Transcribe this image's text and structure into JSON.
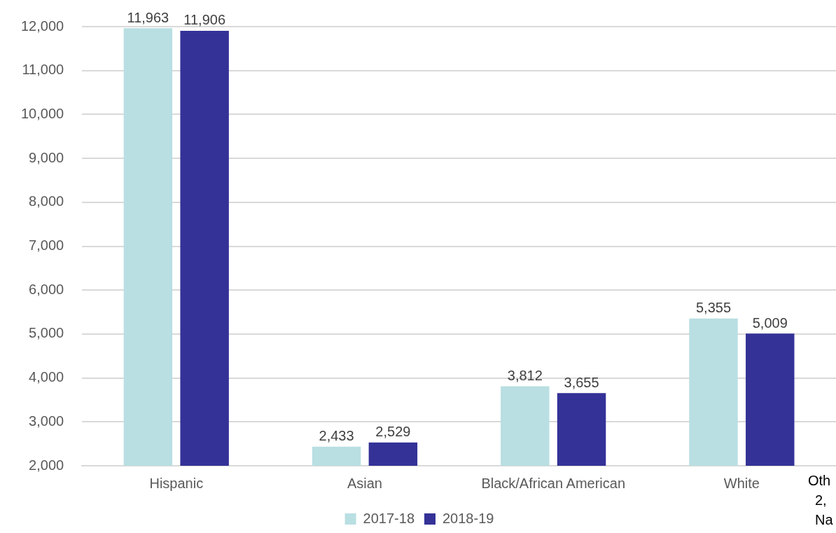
{
  "chart_data": {
    "type": "bar",
    "categories": [
      "Hispanic",
      "Asian",
      "Black/African American",
      "White"
    ],
    "series": [
      {
        "name": "2017-18",
        "color": "#b9dfe2",
        "values": [
          11963,
          2433,
          3812,
          5355
        ],
        "value_labels": [
          "11,963",
          "2,433",
          "3,812",
          "5,355"
        ]
      },
      {
        "name": "2018-19",
        "color": "#343297",
        "values": [
          11906,
          2529,
          3655,
          5009
        ],
        "value_labels": [
          "11,906",
          "2,529",
          "3,655",
          "5,009"
        ]
      }
    ],
    "ylim": [
      2000,
      12000
    ],
    "yticks": [
      {
        "value": 2000,
        "label": "2,000"
      },
      {
        "value": 3000,
        "label": "3,000"
      },
      {
        "value": 4000,
        "label": "4,000"
      },
      {
        "value": 5000,
        "label": "5,000"
      },
      {
        "value": 6000,
        "label": "6,000"
      },
      {
        "value": 7000,
        "label": "7,000"
      },
      {
        "value": 8000,
        "label": "8,000"
      },
      {
        "value": 9000,
        "label": "9,000"
      },
      {
        "value": 10000,
        "label": "10,000"
      },
      {
        "value": 11000,
        "label": "11,000"
      },
      {
        "value": 12000,
        "label": "12,000"
      }
    ],
    "grid": "y",
    "legend": "bottom",
    "annotations": [
      "Oth",
      "2,",
      "Na"
    ]
  }
}
